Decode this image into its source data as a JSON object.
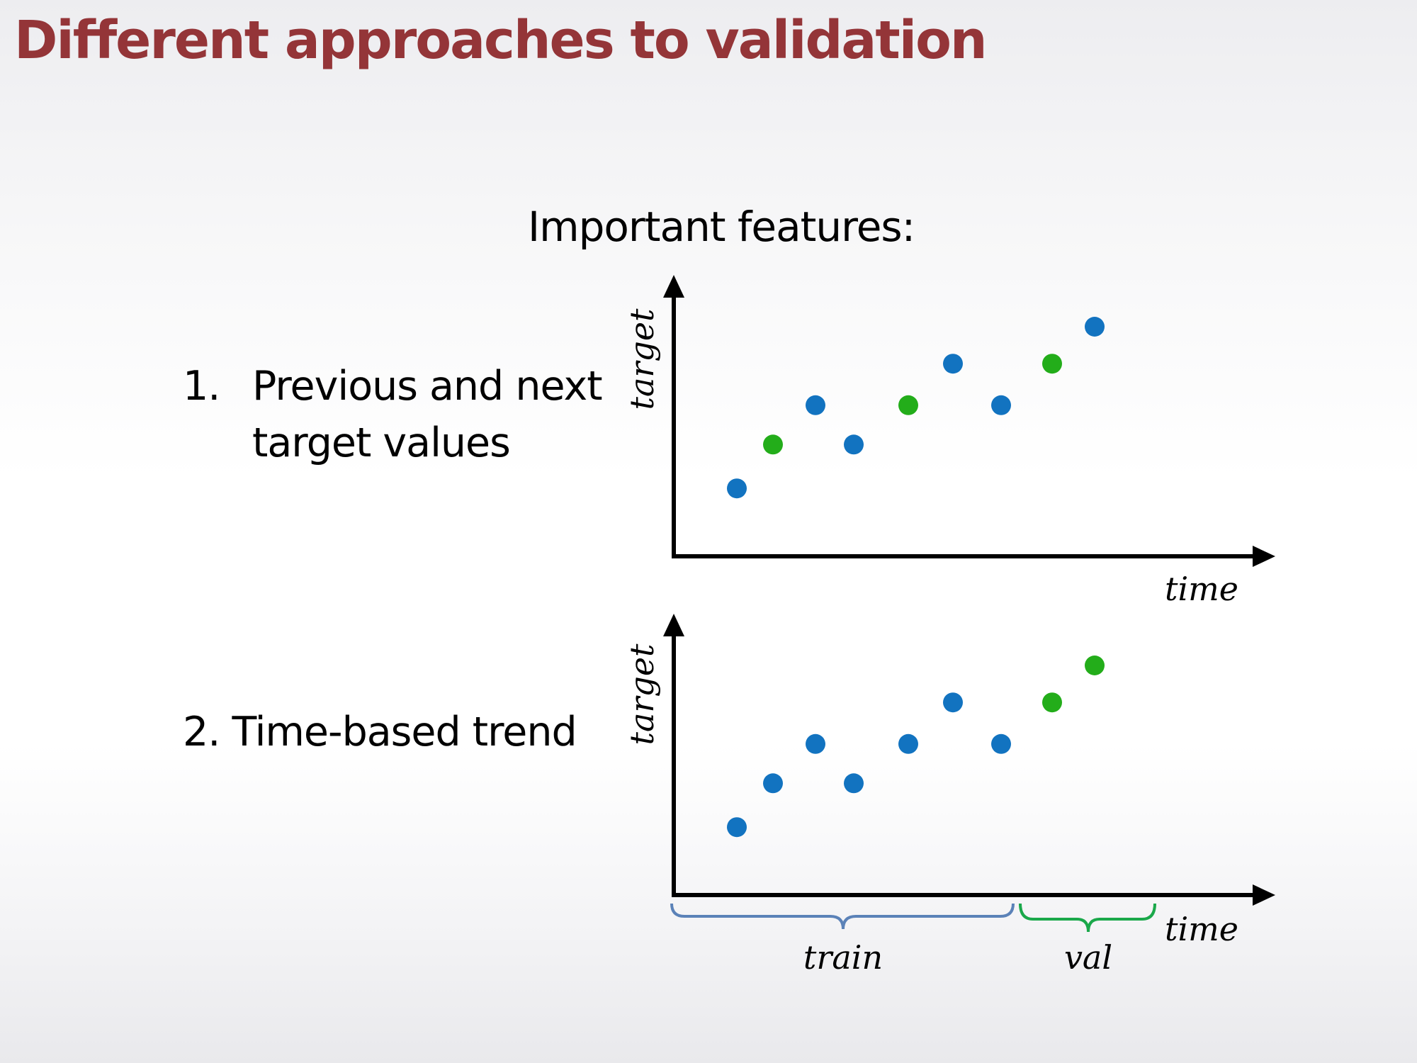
{
  "slide": {
    "title": "Different approaches to validation",
    "subtitle": "Important features:"
  },
  "items": [
    {
      "number": "1.",
      "lines": [
        "Previous and next",
        "target values"
      ]
    },
    {
      "text": "2. Time-based trend"
    }
  ],
  "colors": {
    "title": "#943538",
    "blue_point": "#1273c0",
    "green_point": "#23ad1a",
    "train_brace": "#5b82b8",
    "val_brace": "#1aa84a"
  },
  "chart_data": [
    {
      "type": "scatter",
      "xlabel": "time",
      "ylabel": "target",
      "ylim": [
        0,
        10
      ],
      "points": [
        {
          "x": 1,
          "y": 3.0,
          "group": "blue"
        },
        {
          "x": 2,
          "y": 4.9,
          "group": "green"
        },
        {
          "x": 3,
          "y": 6.6,
          "group": "blue"
        },
        {
          "x": 4,
          "y": 4.9,
          "group": "blue"
        },
        {
          "x": 5,
          "y": 6.6,
          "group": "green"
        },
        {
          "x": 6,
          "y": 8.4,
          "group": "blue"
        },
        {
          "x": 7,
          "y": 6.6,
          "group": "blue"
        },
        {
          "x": 8,
          "y": 8.4,
          "group": "green"
        },
        {
          "x": 9,
          "y": 10.0,
          "group": "blue"
        }
      ]
    },
    {
      "type": "scatter",
      "xlabel": "time",
      "ylabel": "target",
      "ylim": [
        0,
        10
      ],
      "points": [
        {
          "x": 1,
          "y": 3.0,
          "group": "blue"
        },
        {
          "x": 2,
          "y": 4.9,
          "group": "blue"
        },
        {
          "x": 3,
          "y": 6.6,
          "group": "blue"
        },
        {
          "x": 4,
          "y": 4.9,
          "group": "blue"
        },
        {
          "x": 5,
          "y": 6.6,
          "group": "blue"
        },
        {
          "x": 6,
          "y": 8.4,
          "group": "blue"
        },
        {
          "x": 7,
          "y": 6.6,
          "group": "blue"
        },
        {
          "x": 8,
          "y": 8.4,
          "group": "green"
        },
        {
          "x": 9,
          "y": 10.0,
          "group": "green"
        }
      ],
      "splits": [
        {
          "label": "train",
          "from": 0,
          "to": 7.5
        },
        {
          "label": "val",
          "from": 7.5,
          "to": 10
        }
      ]
    }
  ]
}
